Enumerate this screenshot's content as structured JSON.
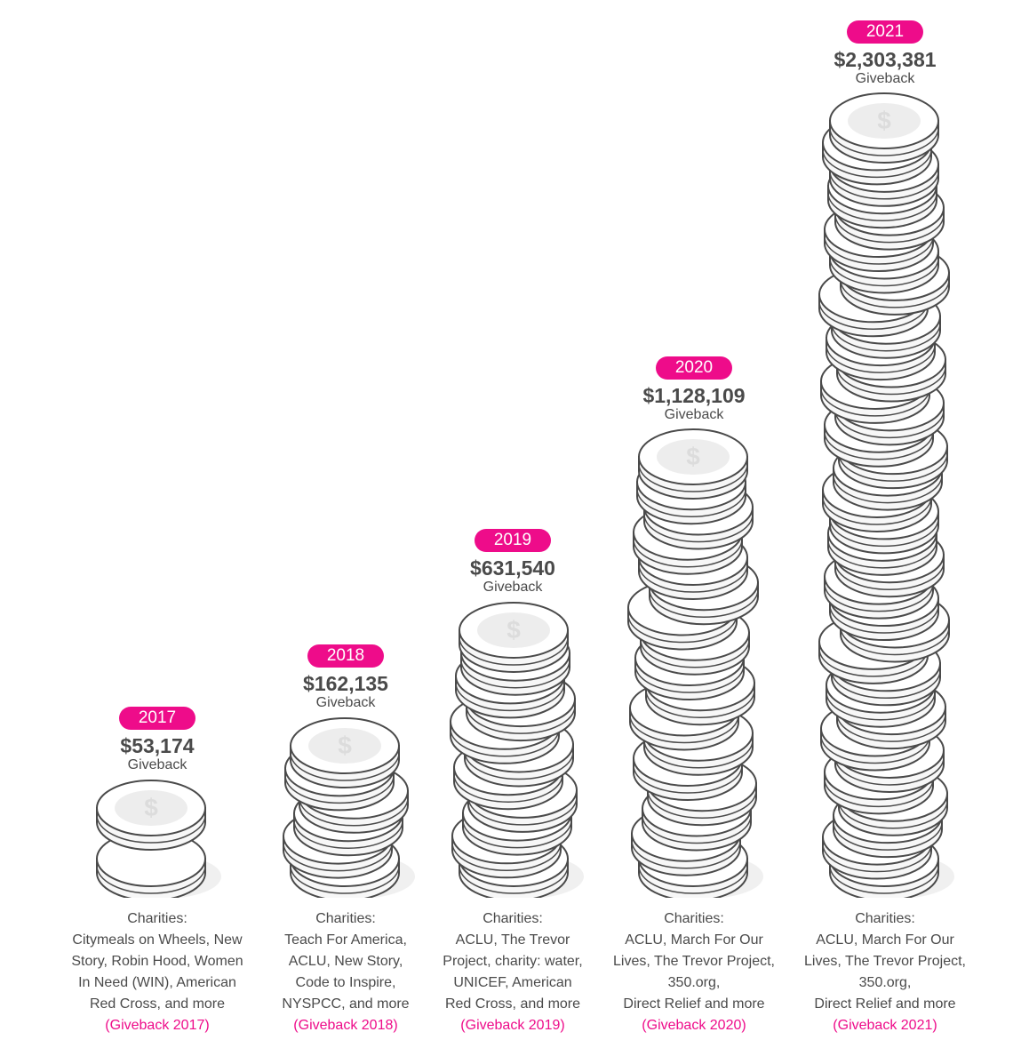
{
  "colors": {
    "accent": "#ee0c8a",
    "text": "#4a4a4a",
    "coin_fill": "#f7f7f7",
    "coin_stroke": "#4a4a4a"
  },
  "chart_data": {
    "type": "bar",
    "categories": [
      "2017",
      "2018",
      "2019",
      "2020",
      "2021"
    ],
    "values": [
      53174,
      162135,
      631540,
      1128109,
      2303381
    ],
    "coin_counts": [
      2,
      6,
      11,
      17,
      35
    ],
    "title": "",
    "xlabel": "",
    "ylabel": ""
  },
  "columns": [
    {
      "year": "2017",
      "amount": "$53,174",
      "label": "Giveback",
      "charities_title": "Charities:",
      "charities_lines": [
        "Citymeals on Wheels, New",
        "Story, Robin Hood, Women",
        "In Need (WIN), American",
        "Red Cross, and more"
      ],
      "link": "(Giveback 2017)"
    },
    {
      "year": "2018",
      "amount": "$162,135",
      "label": "Giveback",
      "charities_title": "Charities:",
      "charities_lines": [
        "Teach For America,",
        "ACLU, New Story,",
        "Code to Inspire,",
        "NYSPCC, and more"
      ],
      "link": "(Giveback 2018)"
    },
    {
      "year": "2019",
      "amount": "$631,540",
      "label": "Giveback",
      "charities_title": "Charities:",
      "charities_lines": [
        "ACLU, The Trevor",
        "Project, charity: water,",
        "UNICEF, American",
        "Red Cross,  and more"
      ],
      "link": "(Giveback 2019)"
    },
    {
      "year": "2020",
      "amount": "$1,128,109",
      "label": "Giveback",
      "charities_title": "Charities:",
      "charities_lines": [
        "ACLU, March For Our",
        "Lives, The Trevor Project,",
        "350.org,",
        "Direct Relief and more"
      ],
      "link": "(Giveback 2020)"
    },
    {
      "year": "2021",
      "amount": "$2,303,381",
      "label": "Giveback",
      "charities_title": "Charities:",
      "charities_lines": [
        "ACLU, March For Our",
        "Lives, The Trevor Project,",
        "350.org,",
        "Direct Relief and more"
      ],
      "link": "(Giveback 2021)"
    }
  ]
}
